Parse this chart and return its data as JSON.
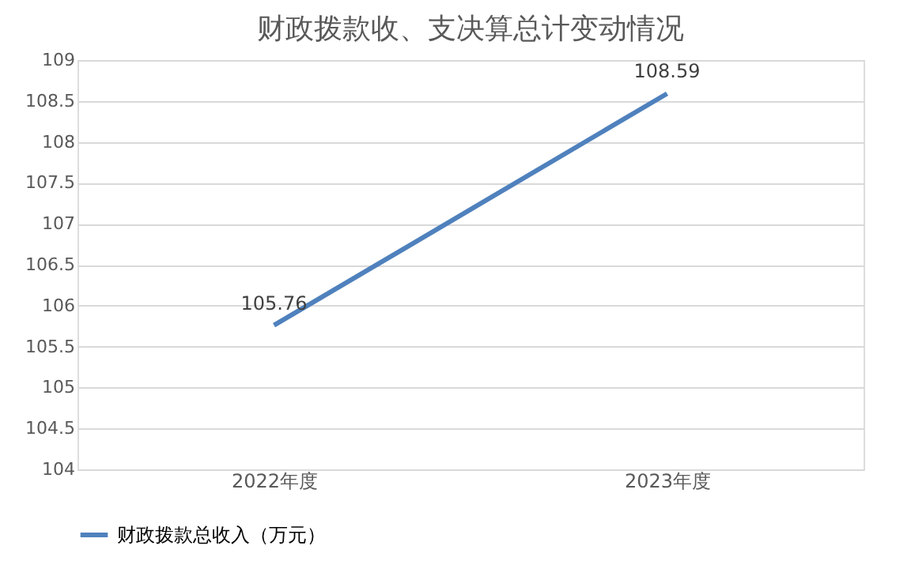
{
  "chart_data": {
    "type": "line",
    "title": "财政拨款收、支决算总计变动情况",
    "categories": [
      "2022年度",
      "2023年度"
    ],
    "series": [
      {
        "name": "财政拨款总收入（万元）",
        "color": "#4f81bd",
        "values": [
          105.76,
          108.59
        ]
      }
    ],
    "ylim": [
      104,
      109
    ],
    "yticks": [
      104,
      104.5,
      105,
      105.5,
      106,
      106.5,
      107,
      107.5,
      108,
      108.5,
      109
    ],
    "grid": "y",
    "legend": "bottom",
    "data_labels": true,
    "marker": "none",
    "line_style": "solid"
  }
}
